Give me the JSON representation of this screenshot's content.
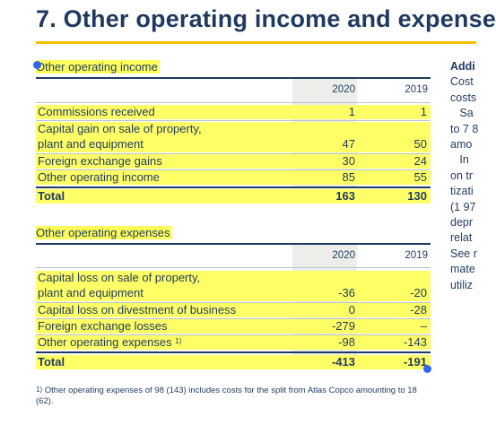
{
  "title": "7.  Other operating income and expense",
  "income": {
    "heading": "Other operating income",
    "year1": "2020",
    "year2": "2019",
    "rows": [
      {
        "label": "Commissions received",
        "v1": "1",
        "v2": "1"
      },
      {
        "label": "Capital gain on sale of property,",
        "label2": "plant and equipment",
        "v1": "47",
        "v2": "50"
      },
      {
        "label": "Foreign exchange gains",
        "v1": "30",
        "v2": "24"
      },
      {
        "label": "Other operating income",
        "v1": "85",
        "v2": "55"
      }
    ],
    "total": {
      "label": "Total",
      "v1": "163",
      "v2": "130"
    }
  },
  "expenses": {
    "heading": "Other operating expenses",
    "year1": "2020",
    "year2": "2019",
    "rows": [
      {
        "label": "Capital loss on sale of property,",
        "label2": "plant and equipment",
        "v1": "-36",
        "v2": "-20"
      },
      {
        "label": "Capital loss on divestment of business",
        "v1": "0",
        "v2": "-28"
      },
      {
        "label": "Foreign exchange losses",
        "v1": "-279",
        "v2": "–"
      },
      {
        "label": "Other operating expenses",
        "sup": "1)",
        "v1": "-98",
        "v2": "-143"
      }
    ],
    "total": {
      "label": "Total",
      "v1": "-413",
      "v2": "-191"
    }
  },
  "footnote": {
    "marker": "1)",
    "text": "Other operating expenses of 98 (143) includes costs for the split from Atlas Copco amounting to 18 (62)."
  },
  "right_column": [
    "Addi",
    "Cost",
    "costs",
    "   Sa",
    "to 7 8",
    "amo",
    "   In",
    "on tr",
    "tizati",
    "(1 97",
    "depr",
    "relat",
    "See r",
    "mate",
    "utiliz"
  ]
}
